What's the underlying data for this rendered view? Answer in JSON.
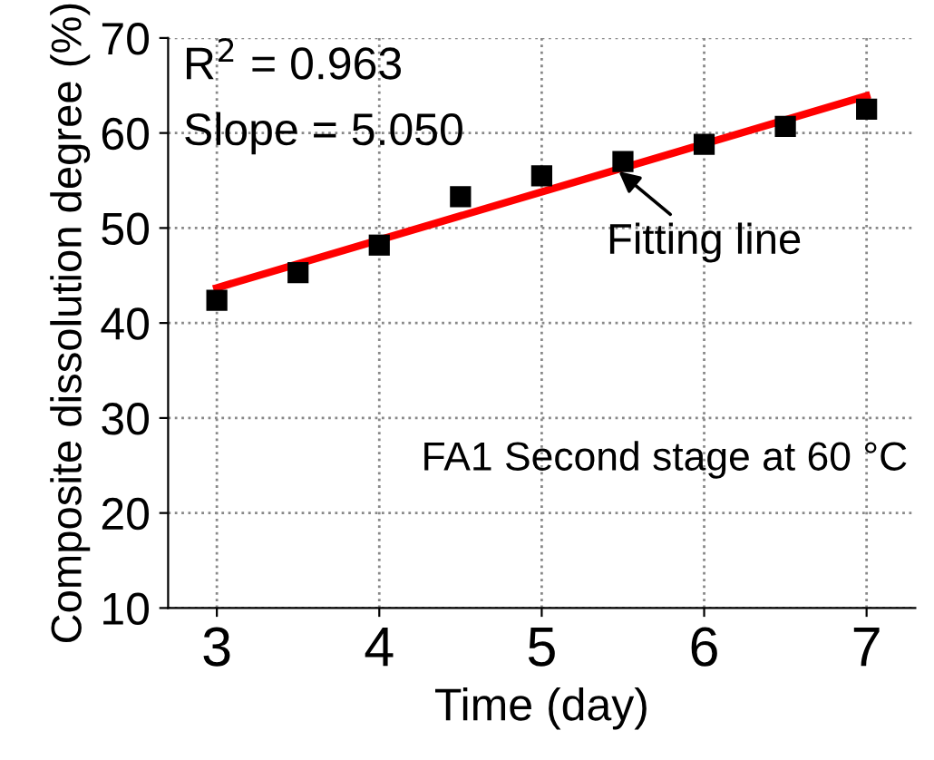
{
  "chart_data": {
    "type": "scatter",
    "xlabel": "Time (day)",
    "ylabel": "Composite dissolution degree (%)",
    "x": [
      3,
      3.5,
      4,
      4.5,
      5,
      5.5,
      6,
      6.5,
      7
    ],
    "series": [
      {
        "color": "#000000",
        "marker": "square",
        "values": [
          42.4,
          45.3,
          48.2,
          53.3,
          55.5,
          57.0,
          58.8,
          60.7,
          62.5
        ]
      },
      {
        "type": "line",
        "color": "#ff0000",
        "x": [
          3,
          7
        ],
        "values": [
          43.7,
          63.9
        ]
      }
    ],
    "xlim": [
      2.7,
      7.3
    ],
    "xticks": [
      3,
      4,
      5,
      6,
      7
    ],
    "ylim": [
      10,
      70
    ],
    "yticks": [
      10,
      20,
      30,
      40,
      50,
      60,
      70
    ],
    "grid": true,
    "annotations": [
      "R$^{2}$ = 0.963",
      "Slope = 5.050",
      {
        "text": "Fitting line",
        "x": 5.45,
        "y": 56.3
      },
      "FA1 Second stage at 60 °C"
    ]
  }
}
